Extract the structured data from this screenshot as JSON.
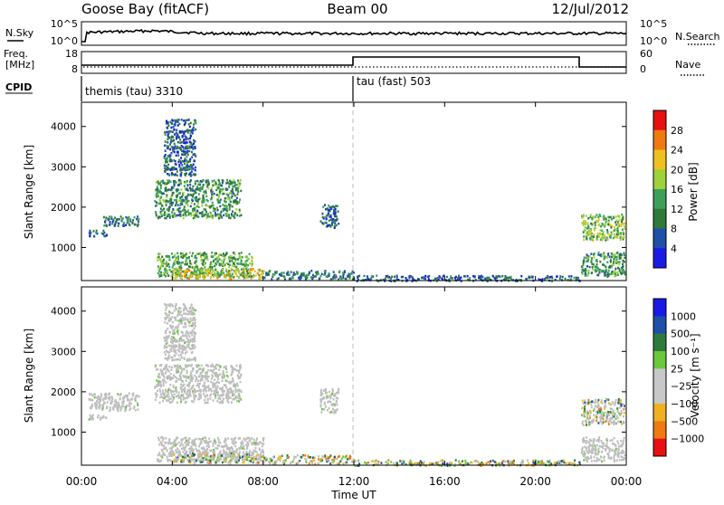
{
  "header": {
    "station": "Goose Bay (fitACF)",
    "beam": "Beam 00",
    "date": "12/Jul/2012"
  },
  "top_panels": {
    "nsky_label": "N.Sky",
    "nsky_ticks": [
      "10^5",
      "10^0"
    ],
    "nsearch_label": "N.Search",
    "nsearch_ticks": [
      "10^5",
      "10^0"
    ],
    "freq_label_1": "Freq.",
    "freq_label_2": "[MHz]",
    "freq_ticks": [
      "18",
      "8"
    ],
    "nave_label": "Nave",
    "nave_ticks": [
      "60",
      "0"
    ],
    "cpid_label": "CPID",
    "cpid_segments": [
      {
        "label": "themis (tau) 3310",
        "start_hour": 0
      },
      {
        "label": "tau (fast) 503",
        "start_hour": 12
      }
    ]
  },
  "colors": {
    "power_scale": [
      "#1a1ae6",
      "#1f4fa8",
      "#2f7a3a",
      "#3ca05a",
      "#9fd13a",
      "#f0c020",
      "#f07a10",
      "#e81010"
    ],
    "velocity_scale": [
      "#e81010",
      "#f07a10",
      "#f0b020",
      "#c8c8c8",
      "#c8c8c8",
      "#6ac83a",
      "#2f7a3a",
      "#1f4fa8",
      "#1a1ae6"
    ],
    "ground_scatter": "#bebebe"
  },
  "chart_data": [
    {
      "type": "heatmap",
      "title": "",
      "xlabel": "Time UT",
      "ylabel": "Slant Range [km]",
      "colorbar_label": "Power [dB]",
      "xlim": [
        0,
        24
      ],
      "ylim": [
        180,
        4600
      ],
      "x_ticks": [
        "00:00",
        "04:00",
        "08:00",
        "12:00",
        "16:00",
        "20:00",
        "00:00"
      ],
      "y_ticks": [
        1000,
        2000,
        3000,
        4000
      ],
      "colorbar_ticks": [
        4,
        8,
        12,
        16,
        20,
        24,
        28
      ],
      "colorbar_range": [
        0,
        32
      ],
      "grid": false,
      "legend": "right",
      "regions": [
        {
          "t0": 0.3,
          "t1": 1.1,
          "r0": 1300,
          "r1": 1450,
          "v": 6
        },
        {
          "t0": 0.9,
          "t1": 2.5,
          "r0": 1550,
          "r1": 1800,
          "v": 7
        },
        {
          "t0": 3.2,
          "t1": 7.0,
          "r0": 1750,
          "r1": 2700,
          "v": 10
        },
        {
          "t0": 3.6,
          "t1": 5.0,
          "r0": 2800,
          "r1": 4200,
          "v": 5
        },
        {
          "t0": 3.3,
          "t1": 7.5,
          "r0": 300,
          "r1": 900,
          "v": 12
        },
        {
          "t0": 4.0,
          "t1": 8.0,
          "r0": 250,
          "r1": 500,
          "v": 18
        },
        {
          "t0": 8.0,
          "t1": 12.0,
          "r0": 230,
          "r1": 450,
          "v": 8
        },
        {
          "t0": 12.0,
          "t1": 22.0,
          "r0": 190,
          "r1": 330,
          "v": 5
        },
        {
          "t0": 10.5,
          "t1": 11.3,
          "r0": 1500,
          "r1": 2100,
          "v": 5
        },
        {
          "t0": 22.0,
          "t1": 23.9,
          "r0": 1200,
          "r1": 1850,
          "v": 14
        },
        {
          "t0": 22.0,
          "t1": 23.9,
          "r0": 300,
          "r1": 900,
          "v": 10
        }
      ]
    },
    {
      "type": "heatmap",
      "title": "",
      "xlabel": "Time UT",
      "ylabel": "Slant Range [km]",
      "colorbar_label": "Velocity [m s⁻¹]",
      "xlim": [
        0,
        24
      ],
      "ylim": [
        180,
        4600
      ],
      "x_ticks": [
        "00:00",
        "04:00",
        "08:00",
        "12:00",
        "16:00",
        "20:00",
        "00:00"
      ],
      "y_ticks": [
        1000,
        2000,
        3000,
        4000
      ],
      "colorbar_ticks": [
        "1000",
        "500",
        "100",
        "25",
        "−25",
        "−100",
        "−500",
        "−1000"
      ],
      "grid": false,
      "legend": "right",
      "regions": [
        {
          "t0": 0.3,
          "t1": 1.1,
          "r0": 1300,
          "r1": 1450,
          "v": 0
        },
        {
          "t0": 0.3,
          "t1": 2.5,
          "r0": 1550,
          "r1": 2000,
          "v": 0
        },
        {
          "t0": 3.2,
          "t1": 7.0,
          "r0": 1750,
          "r1": 2700,
          "v": 0
        },
        {
          "t0": 3.6,
          "t1": 5.0,
          "r0": 2800,
          "r1": 4200,
          "v": 0
        },
        {
          "t0": 3.3,
          "t1": 8.0,
          "r0": 300,
          "r1": 900,
          "v": 0
        },
        {
          "t0": 4.0,
          "t1": 8.0,
          "r0": 250,
          "r1": 500,
          "v": 50
        },
        {
          "t0": 8.0,
          "t1": 12.0,
          "r0": 230,
          "r1": 450,
          "v": 60
        },
        {
          "t0": 12.0,
          "t1": 22.0,
          "r0": 190,
          "r1": 330,
          "v": 80
        },
        {
          "t0": 10.5,
          "t1": 11.3,
          "r0": 1500,
          "r1": 2100,
          "v": 0
        },
        {
          "t0": 22.0,
          "t1": 23.9,
          "r0": 1200,
          "r1": 1850,
          "v": 40
        },
        {
          "t0": 22.0,
          "t1": 23.9,
          "r0": 300,
          "r1": 900,
          "v": 0
        }
      ]
    }
  ]
}
